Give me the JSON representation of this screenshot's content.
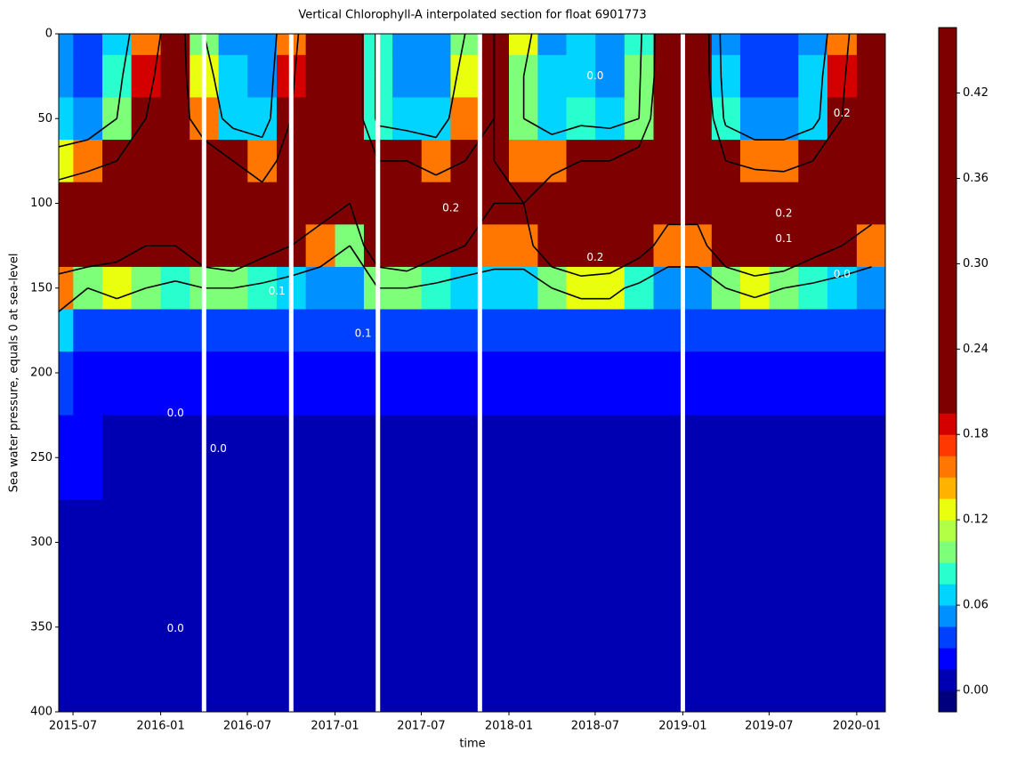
{
  "chart_data": {
    "type": "contourf",
    "title": "Vertical Chlorophyll-A interpolated section for float 6901773",
    "x_label": "time",
    "y_label": "Sea water pressure, equals 0 at sea-level",
    "xlim": [
      "2015-06",
      "2020-03"
    ],
    "xticks": [
      "2015-07",
      "2016-01",
      "2016-07",
      "2017-01",
      "2017-07",
      "2018-01",
      "2018-07",
      "2019-01",
      "2019-07",
      "2020-01"
    ],
    "ylim": [
      400,
      0
    ],
    "yticks": [
      0,
      50,
      100,
      150,
      200,
      250,
      300,
      350,
      400
    ],
    "x": [
      "2015-06",
      "2015-08",
      "2015-10",
      "2015-12",
      "2016-02",
      "2016-04",
      "2016-06",
      "2016-08",
      "2016-10",
      "2016-12",
      "2017-02",
      "2017-04",
      "2017-06",
      "2017-08",
      "2017-10",
      "2017-12",
      "2018-02",
      "2018-04",
      "2018-06",
      "2018-08",
      "2018-10",
      "2018-12",
      "2019-02",
      "2019-04",
      "2019-06",
      "2019-08",
      "2019-10",
      "2019-12",
      "2020-02"
    ],
    "y": [
      0,
      25,
      50,
      75,
      100,
      125,
      150,
      175,
      200,
      250,
      300,
      400
    ],
    "z": [
      [
        0.05,
        0.05,
        0.06,
        0.12,
        0.3,
        0.3,
        0.15,
        0.06,
        0.03,
        0.02,
        0.01,
        0.01
      ],
      [
        0.04,
        0.04,
        0.05,
        0.15,
        0.35,
        0.3,
        0.1,
        0.04,
        0.02,
        0.02,
        0.01,
        0.01
      ],
      [
        0.06,
        0.08,
        0.1,
        0.2,
        0.3,
        0.25,
        0.12,
        0.04,
        0.02,
        0.01,
        0.01,
        0.01
      ],
      [
        0.15,
        0.18,
        0.2,
        0.25,
        0.3,
        0.2,
        0.1,
        0.03,
        0.02,
        0.01,
        0.01,
        0.01
      ],
      [
        0.25,
        0.25,
        0.25,
        0.3,
        0.3,
        0.2,
        0.08,
        0.03,
        0.02,
        0.01,
        0.01,
        0.01
      ],
      [
        0.1,
        0.12,
        0.15,
        0.25,
        0.35,
        0.3,
        0.1,
        0.03,
        0.02,
        0.01,
        0.01,
        0.01
      ],
      [
        0.05,
        0.06,
        0.07,
        0.2,
        0.35,
        0.35,
        0.1,
        0.03,
        0.02,
        0.01,
        0.01,
        0.01
      ],
      [
        0.05,
        0.05,
        0.06,
        0.15,
        0.25,
        0.25,
        0.08,
        0.03,
        0.02,
        0.01,
        0.01,
        0.01
      ],
      [
        0.15,
        0.18,
        0.2,
        0.25,
        0.3,
        0.2,
        0.06,
        0.03,
        0.02,
        0.01,
        0.01,
        0.01
      ],
      [
        0.35,
        0.35,
        0.35,
        0.3,
        0.25,
        0.15,
        0.05,
        0.03,
        0.02,
        0.01,
        0.01,
        0.01
      ],
      [
        0.3,
        0.3,
        0.3,
        0.3,
        0.2,
        0.1,
        0.05,
        0.03,
        0.02,
        0.01,
        0.01,
        0.01
      ],
      [
        0.08,
        0.08,
        0.08,
        0.2,
        0.35,
        0.3,
        0.1,
        0.04,
        0.02,
        0.01,
        0.01,
        0.01
      ],
      [
        0.05,
        0.05,
        0.06,
        0.2,
        0.4,
        0.35,
        0.1,
        0.04,
        0.02,
        0.01,
        0.01,
        0.01
      ],
      [
        0.05,
        0.05,
        0.06,
        0.15,
        0.3,
        0.25,
        0.08,
        0.03,
        0.02,
        0.01,
        0.01,
        0.01
      ],
      [
        0.1,
        0.12,
        0.15,
        0.2,
        0.25,
        0.2,
        0.06,
        0.03,
        0.02,
        0.01,
        0.01,
        0.01
      ],
      [
        0.2,
        0.2,
        0.2,
        0.2,
        0.2,
        0.15,
        0.06,
        0.03,
        0.02,
        0.01,
        0.01,
        0.01
      ],
      [
        0.12,
        0.1,
        0.1,
        0.15,
        0.2,
        0.15,
        0.06,
        0.03,
        0.02,
        0.01,
        0.01,
        0.01
      ],
      [
        0.05,
        0.06,
        0.07,
        0.15,
        0.3,
        0.3,
        0.1,
        0.03,
        0.02,
        0.01,
        0.01,
        0.01
      ],
      [
        0.06,
        0.06,
        0.08,
        0.2,
        0.4,
        0.4,
        0.12,
        0.04,
        0.02,
        0.01,
        0.01,
        0.01
      ],
      [
        0.05,
        0.05,
        0.07,
        0.2,
        0.4,
        0.35,
        0.12,
        0.04,
        0.02,
        0.01,
        0.01,
        0.01
      ],
      [
        0.08,
        0.09,
        0.1,
        0.25,
        0.3,
        0.25,
        0.08,
        0.03,
        0.02,
        0.01,
        0.01,
        0.01
      ],
      [
        0.3,
        0.3,
        0.35,
        0.3,
        0.25,
        0.15,
        0.05,
        0.03,
        0.02,
        0.01,
        0.01,
        0.01
      ],
      [
        0.3,
        0.3,
        0.35,
        0.3,
        0.25,
        0.15,
        0.05,
        0.03,
        0.02,
        0.01,
        0.01,
        0.01
      ],
      [
        0.05,
        0.06,
        0.08,
        0.2,
        0.3,
        0.3,
        0.1,
        0.03,
        0.02,
        0.01,
        0.01,
        0.01
      ],
      [
        0.04,
        0.04,
        0.05,
        0.15,
        0.4,
        0.4,
        0.12,
        0.03,
        0.02,
        0.01,
        0.01,
        0.01
      ],
      [
        0.04,
        0.04,
        0.05,
        0.15,
        0.35,
        0.35,
        0.1,
        0.03,
        0.02,
        0.01,
        0.01,
        0.01
      ],
      [
        0.05,
        0.06,
        0.07,
        0.2,
        0.3,
        0.25,
        0.08,
        0.03,
        0.02,
        0.01,
        0.01,
        0.01
      ],
      [
        0.15,
        0.18,
        0.2,
        0.25,
        0.3,
        0.2,
        0.06,
        0.03,
        0.02,
        0.01,
        0.01,
        0.01
      ],
      [
        0.35,
        0.35,
        0.35,
        0.3,
        0.25,
        0.15,
        0.05,
        0.03,
        0.02,
        0.01,
        0.01,
        0.01
      ]
    ],
    "levels": [
      -0.015,
      0,
      0.015,
      0.03,
      0.045,
      0.06,
      0.075,
      0.09,
      0.105,
      0.12,
      0.135,
      0.15,
      0.165,
      0.18,
      0.195,
      0.466
    ],
    "colors": [
      "#00007f",
      "#0000b2",
      "#0000ff",
      "#0040ff",
      "#0090ff",
      "#00d4ff",
      "#29ffce",
      "#7dff7a",
      "#b2ff45",
      "#eaff0d",
      "#ffb300",
      "#ff7700",
      "#ff3700",
      "#d40000",
      "#7f0000"
    ],
    "colorbar_ticks": [
      {
        "value": 0,
        "label": "0.00"
      },
      {
        "value": 0.06,
        "label": "0.06"
      },
      {
        "value": 0.12,
        "label": "0.12"
      },
      {
        "value": 0.18,
        "label": "0.18"
      },
      {
        "value": 0.24,
        "label": "0.24"
      },
      {
        "value": 0.3,
        "label": "0.30"
      },
      {
        "value": 0.36,
        "label": "0.36"
      },
      {
        "value": 0.42,
        "label": "0.42"
      }
    ],
    "contour_levels": [
      0.1,
      0.2
    ],
    "gaps": [
      "2016-04",
      "2016-10",
      "2017-04",
      "2017-11",
      "2019-01"
    ],
    "contour_labels": [
      {
        "text": "0.0",
        "x": "2016-02",
        "y": 224
      },
      {
        "text": "0.0",
        "x": "2016-05",
        "y": 245
      },
      {
        "text": "0.0",
        "x": "2016-02",
        "y": 351
      },
      {
        "text": "0.1",
        "x": "2017-03",
        "y": 177
      },
      {
        "text": "0.0",
        "x": "2018-07",
        "y": 25
      },
      {
        "text": "0.2",
        "x": "2019-08",
        "y": 106
      },
      {
        "text": "0.1",
        "x": "2019-08",
        "y": 121
      },
      {
        "text": "0.2",
        "x": "2017-09",
        "y": 103
      },
      {
        "text": "0.0",
        "x": "2019-12",
        "y": 142
      },
      {
        "text": "0.1",
        "x": "2016-09",
        "y": 152
      },
      {
        "text": "0.2",
        "x": "2018-07",
        "y": 132
      },
      {
        "text": "0.2",
        "x": "2019-12",
        "y": 47
      }
    ]
  }
}
